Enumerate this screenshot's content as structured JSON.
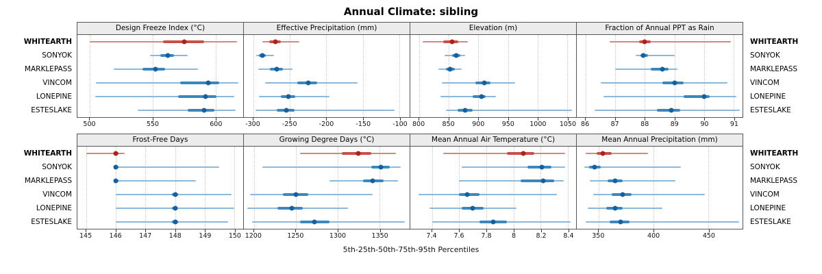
{
  "title": "Annual Climate: sibling",
  "caption": "5th-25th-50th-75th-95th Percentiles",
  "highlight_site": "WHITEARTH",
  "sites": [
    "WHITEARTH",
    "SONYOK",
    "MARKLEPASS",
    "VINCOM",
    "LONEPINE",
    "ESTESLAKE"
  ],
  "colors": {
    "highlight": {
      "line": "#d08a80",
      "band": "#c35146",
      "dot": "#ab241a"
    },
    "normal": {
      "line": "#89b8dc",
      "band": "#3a87c0",
      "dot": "#16609f"
    },
    "gridline": "#c9c9c9",
    "panel_header_bg": "#ececec",
    "panel_border": "#555555"
  },
  "chart_data": {
    "type": "scatter",
    "subtype": "dotplot-percentile-intervals",
    "percentiles": [
      "5th",
      "25th",
      "50th",
      "75th",
      "95th"
    ],
    "site_order_top_to_bottom": [
      "WHITEARTH",
      "SONYOK",
      "MARKLEPASS",
      "VINCOM",
      "LONEPINE",
      "ESTESLAKE"
    ],
    "legend_position": "none",
    "grid": "vertical-dotted",
    "panels": [
      {
        "title": "Design Freeze Index (°C)",
        "ticks": [
          500,
          550,
          600
        ],
        "tick_labels": [
          "500",
          "550",
          "600"
        ],
        "xlim": [
          490,
          622
        ],
        "values": {
          "WHITEARTH": [
            500,
            558,
            575,
            591,
            617
          ],
          "SONYOK": [
            548,
            556,
            562,
            567,
            578
          ],
          "MARKLEPASS": [
            519,
            542,
            552,
            560,
            586
          ],
          "VINCOM": [
            505,
            572,
            594,
            603,
            618
          ],
          "LONEPINE": [
            504,
            570,
            592,
            601,
            615
          ],
          "ESTESLAKE": [
            538,
            578,
            591,
            599,
            616
          ]
        }
      },
      {
        "title": "Effective Precipitation (mm)",
        "ticks": [
          -300,
          -250,
          -200,
          -150,
          -100
        ],
        "tick_labels": [
          "-300",
          "-250",
          "-200",
          "-150",
          "-100"
        ],
        "xlim": [
          -313,
          -86
        ],
        "values": {
          "WHITEARTH": [
            -288,
            -278,
            -270,
            -262,
            -237
          ],
          "SONYOK": [
            -296,
            -292,
            -288,
            -283,
            -272
          ],
          "MARKLEPASS": [
            -293,
            -277,
            -268,
            -260,
            -246
          ],
          "VINCOM": [
            -284,
            -240,
            -225,
            -213,
            -157
          ],
          "LONEPINE": [
            -292,
            -262,
            -252,
            -243,
            -196
          ],
          "ESTESLAKE": [
            -297,
            -268,
            -255,
            -244,
            -107
          ]
        }
      },
      {
        "title": "Elevation (m)",
        "ticks": [
          800,
          850,
          900,
          950,
          1000,
          1050
        ],
        "tick_labels": [
          "800",
          "850",
          "900",
          "950",
          "1000",
          "1050"
        ],
        "xlim": [
          785,
          1065
        ],
        "values": {
          "WHITEARTH": [
            806,
            840,
            855,
            866,
            882
          ],
          "SONYOK": [
            843,
            855,
            862,
            869,
            878
          ],
          "MARKLEPASS": [
            833,
            845,
            852,
            860,
            872
          ],
          "VINCOM": [
            838,
            895,
            910,
            920,
            962
          ],
          "LONEPINE": [
            836,
            890,
            905,
            912,
            930
          ],
          "ESTESLAKE": [
            845,
            865,
            878,
            890,
            1058
          ]
        }
      },
      {
        "title": "Fraction of Annual PPT as Rain",
        "ticks": [
          86,
          87,
          88,
          89,
          90,
          91
        ],
        "tick_labels": [
          "86",
          "87",
          "88",
          "89",
          "90",
          "91"
        ],
        "xlim": [
          85.7,
          91.3
        ],
        "values": {
          "WHITEARTH": [
            86.8,
            87.8,
            88.0,
            88.2,
            90.9
          ],
          "SONYOK": [
            87.7,
            87.85,
            87.95,
            88.1,
            89.0
          ],
          "MARKLEPASS": [
            87.0,
            88.2,
            88.6,
            88.8,
            89.1
          ],
          "VINCOM": [
            86.5,
            88.6,
            89.0,
            89.3,
            90.8
          ],
          "LONEPINE": [
            86.6,
            89.3,
            90.0,
            90.2,
            91.1
          ],
          "ESTESLAKE": [
            86.3,
            88.4,
            88.9,
            89.2,
            91.2
          ]
        }
      },
      {
        "title": "Frost-Free Days",
        "ticks": [
          145,
          146,
          147,
          148,
          149,
          150
        ],
        "tick_labels": [
          "145",
          "146",
          "147",
          "148",
          "149",
          "150"
        ],
        "xlim": [
          144.7,
          150.3
        ],
        "values": {
          "WHITEARTH": [
            145.0,
            145.95,
            146.0,
            146.1,
            146.3
          ],
          "SONYOK": [
            145.95,
            146.0,
            146.0,
            146.1,
            149.5
          ],
          "MARKLEPASS": [
            145.95,
            146.0,
            146.0,
            146.1,
            148.7
          ],
          "VINCOM": [
            146.0,
            147.9,
            148.0,
            148.1,
            149.9
          ],
          "LONEPINE": [
            146.0,
            147.9,
            148.0,
            148.05,
            150.0
          ],
          "ESTESLAKE": [
            146.0,
            147.9,
            148.0,
            148.1,
            149.8
          ]
        }
      },
      {
        "title": "Growing Degree Days (°C)",
        "ticks": [
          1200,
          1250,
          1300,
          1350
        ],
        "tick_labels": [
          "1200",
          "1250",
          "1300",
          "1350"
        ],
        "xlim": [
          1188,
          1386
        ],
        "values": {
          "WHITEARTH": [
            1255,
            1305,
            1325,
            1340,
            1370
          ],
          "SONYOK": [
            1210,
            1340,
            1352,
            1362,
            1375
          ],
          "MARKLEPASS": [
            1290,
            1330,
            1342,
            1355,
            1372
          ],
          "VINCOM": [
            1195,
            1235,
            1250,
            1265,
            1342
          ],
          "LONEPINE": [
            1192,
            1228,
            1245,
            1258,
            1312
          ],
          "ESTESLAKE": [
            1198,
            1255,
            1272,
            1290,
            1380
          ]
        }
      },
      {
        "title": "Mean Annual Air Temperature (°C)",
        "ticks": [
          7.4,
          7.6,
          7.8,
          8.0,
          8.2,
          8.4
        ],
        "tick_labels": [
          "7.4",
          "7.6",
          "7.8",
          "8",
          "8.2",
          "8.4"
        ],
        "xlim": [
          7.24,
          8.46
        ],
        "values": {
          "WHITEARTH": [
            7.48,
            7.95,
            8.07,
            8.15,
            8.38
          ],
          "SONYOK": [
            7.62,
            8.1,
            8.21,
            8.28,
            8.38
          ],
          "MARKLEPASS": [
            7.6,
            8.05,
            8.22,
            8.3,
            8.37
          ],
          "VINCOM": [
            7.3,
            7.6,
            7.66,
            7.75,
            8.32
          ],
          "LONEPINE": [
            7.38,
            7.62,
            7.7,
            7.78,
            8.02
          ],
          "ESTESLAKE": [
            7.4,
            7.75,
            7.85,
            7.95,
            8.42
          ]
        }
      },
      {
        "title": "Mean Annual Precipitation (mm)",
        "ticks": [
          350,
          400,
          450
        ],
        "tick_labels": [
          "350",
          "400",
          "450"
        ],
        "xlim": [
          330,
          481
        ],
        "values": {
          "WHITEARTH": [
            338,
            348,
            354,
            362,
            395
          ],
          "SONYOK": [
            337,
            341,
            346,
            352,
            425
          ],
          "MARKLEPASS": [
            342,
            358,
            365,
            372,
            420
          ],
          "VINCOM": [
            345,
            362,
            372,
            380,
            447
          ],
          "LONEPINE": [
            340,
            357,
            365,
            372,
            408
          ],
          "ESTESLAKE": [
            338,
            360,
            370,
            378,
            478
          ]
        }
      }
    ]
  }
}
